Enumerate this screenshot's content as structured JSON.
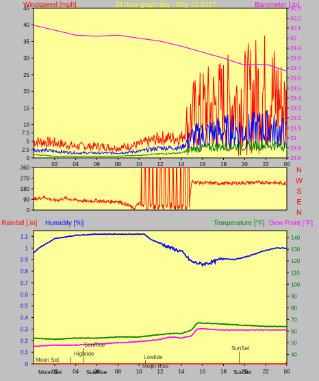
{
  "colors": {
    "background": "#c0c0c0",
    "plot_bg": "#ffff99",
    "wind_speed": "#ff0000",
    "wind_avg": "#0000ff",
    "wind_low": "#008000",
    "barometer": "#ff00ff",
    "humidity": "#0000ff",
    "temperature": "#008000",
    "dew_point": "#ff00ff",
    "rainfall": "#ff0000",
    "title": "#ffff00",
    "annotation": "#333333"
  },
  "header": {
    "wind_label": "Windspeed [mph]",
    "title": "24 hour graph day : May 01 2017",
    "barometer_label": "Barometer [.in]"
  },
  "bottom_header": {
    "rainfall_label": "Rainfall [.in]",
    "humidity_label": "Humidity [%]",
    "temperature_label": "Temperature [°F]",
    "dew_point_label": "Dew Point [°F]"
  },
  "chart_data": [
    {
      "type": "line",
      "name": "wind-barometer",
      "x_ticks": [
        "02",
        "04",
        "06",
        "08",
        "10",
        "12",
        "14",
        "16",
        "18",
        "20",
        "22",
        "00"
      ],
      "x_range_hours": [
        0,
        24
      ],
      "y_left_ticks": [
        "0",
        "2.5",
        "5",
        "7.5",
        "10",
        "15",
        "20",
        "25",
        "30",
        "35",
        "40",
        "45"
      ],
      "y_left_range": [
        0,
        45
      ],
      "y_right_ticks": [
        "28.8",
        "28.9",
        "29",
        "29.1",
        "29.2",
        "29.3",
        "29.4",
        "29.5",
        "29.6",
        "29.7",
        "29.8",
        "29.9",
        "30",
        "30.1",
        "30.2",
        "30.3"
      ],
      "y_right_range": [
        28.8,
        30.3
      ],
      "series": [
        {
          "name": "Windspeed gust",
          "hours": [
            0,
            2,
            4,
            6,
            8,
            10,
            12,
            14,
            15,
            16,
            18,
            20,
            21,
            22,
            23,
            24
          ],
          "values": [
            5,
            4.5,
            3.5,
            3.5,
            3,
            4,
            6,
            6,
            12,
            14,
            16,
            17,
            19,
            20,
            18,
            14
          ]
        },
        {
          "name": "Windspeed avg",
          "hours": [
            0,
            2,
            4,
            6,
            8,
            10,
            12,
            14,
            15,
            16,
            18,
            20,
            22,
            24
          ],
          "values": [
            2.5,
            2,
            1.5,
            1.5,
            1.5,
            2,
            3,
            3,
            6,
            7,
            8,
            8,
            9,
            7
          ]
        },
        {
          "name": "Windspeed low",
          "hours": [
            0,
            2,
            4,
            6,
            8,
            10,
            12,
            14,
            15,
            16,
            18,
            20,
            22,
            24
          ],
          "values": [
            1,
            0.5,
            0.5,
            0.5,
            0.5,
            0.8,
            1.2,
            1.5,
            2.5,
            3,
            3.5,
            3.5,
            4,
            3.5
          ]
        },
        {
          "name": "Barometer",
          "hours": [
            0,
            2,
            4,
            6,
            8,
            10,
            12,
            14,
            16,
            18,
            20,
            22,
            24
          ],
          "values": [
            30.13,
            30.08,
            30.03,
            30.02,
            30.03,
            30.0,
            29.97,
            29.92,
            29.86,
            29.8,
            29.73,
            29.74,
            29.67
          ]
        }
      ]
    },
    {
      "type": "line",
      "name": "wind-direction",
      "y_ticks": [
        "0",
        "90",
        "180",
        "270",
        "360"
      ],
      "y_range": [
        0,
        360
      ],
      "compass_labels": [
        "N",
        "W",
        "S",
        "E",
        "N"
      ],
      "series": [
        {
          "name": "Wind direction",
          "hours": [
            0,
            1,
            2,
            3,
            4,
            5,
            6,
            7,
            8,
            9,
            9.5,
            10,
            10.2,
            10.5,
            11,
            11.5,
            12,
            12.5,
            13,
            13.5,
            14,
            14.3,
            14.7,
            15,
            16,
            18,
            20,
            22,
            24
          ],
          "values": [
            90,
            110,
            80,
            100,
            85,
            75,
            80,
            70,
            75,
            40,
            10,
            60,
            40,
            360,
            20,
            360,
            30,
            360,
            20,
            360,
            10,
            360,
            30,
            240,
            230,
            225,
            230,
            235,
            225
          ]
        }
      ]
    },
    {
      "type": "line",
      "name": "humidity-temperature-rain",
      "x_ticks": [
        "02",
        "04",
        "06",
        "08",
        "10",
        "12",
        "14",
        "16",
        "18",
        "20",
        "22",
        "00"
      ],
      "y_left_ticks": [
        "0",
        "0.1",
        "0.2",
        "0.3",
        "0.4",
        "0.5",
        "0.6",
        "0.7",
        "0.8",
        "0.9",
        "1",
        "1.1"
      ],
      "y_left_range": [
        0,
        1.1
      ],
      "y_right_ticks": [
        "40",
        "50",
        "60",
        "70",
        "80",
        "90",
        "100",
        "110",
        "120",
        "130",
        "140"
      ],
      "y_right_range": [
        35,
        145
      ],
      "series": [
        {
          "name": "Humidity",
          "hours": [
            0,
            0.5,
            2,
            4,
            6,
            8,
            10,
            10.5,
            11,
            12,
            13,
            14,
            15,
            16,
            17,
            18,
            19,
            20,
            22,
            23,
            24
          ],
          "values": [
            0.96,
            1.0,
            1.08,
            1.11,
            1.12,
            1.12,
            1.12,
            1.12,
            1.08,
            1.04,
            1.0,
            0.97,
            0.88,
            0.86,
            0.88,
            0.91,
            0.9,
            0.92,
            0.98,
            1.0,
            1.0
          ]
        },
        {
          "name": "Temperature",
          "hours": [
            0,
            2,
            4,
            6,
            8,
            10,
            12,
            13,
            14,
            15,
            15.5,
            16,
            18,
            20,
            22,
            24
          ],
          "values": [
            54,
            53,
            54,
            54,
            55,
            55,
            57,
            58,
            58,
            61,
            67,
            67,
            66,
            65,
            64,
            64
          ]
        },
        {
          "name": "Dew Point",
          "hours": [
            0,
            2,
            4,
            6,
            8,
            10,
            12,
            13,
            14,
            15,
            15.5,
            16,
            18,
            20,
            22,
            24
          ],
          "values": [
            47,
            48,
            48,
            49,
            50,
            51,
            53,
            55,
            54,
            56,
            62,
            62,
            61,
            61,
            61,
            61
          ]
        },
        {
          "name": "Rainfall",
          "hours": [
            0,
            23.9,
            24
          ],
          "values": [
            0,
            0,
            0.02
          ]
        }
      ],
      "annotations": [
        "Moon Set",
        "Hightide",
        "SunRise",
        "Lowtide",
        "Moon Rise",
        "SunSet"
      ],
      "bottom_events": [
        "Moon Set",
        "SunRise",
        "SunSet"
      ]
    }
  ]
}
